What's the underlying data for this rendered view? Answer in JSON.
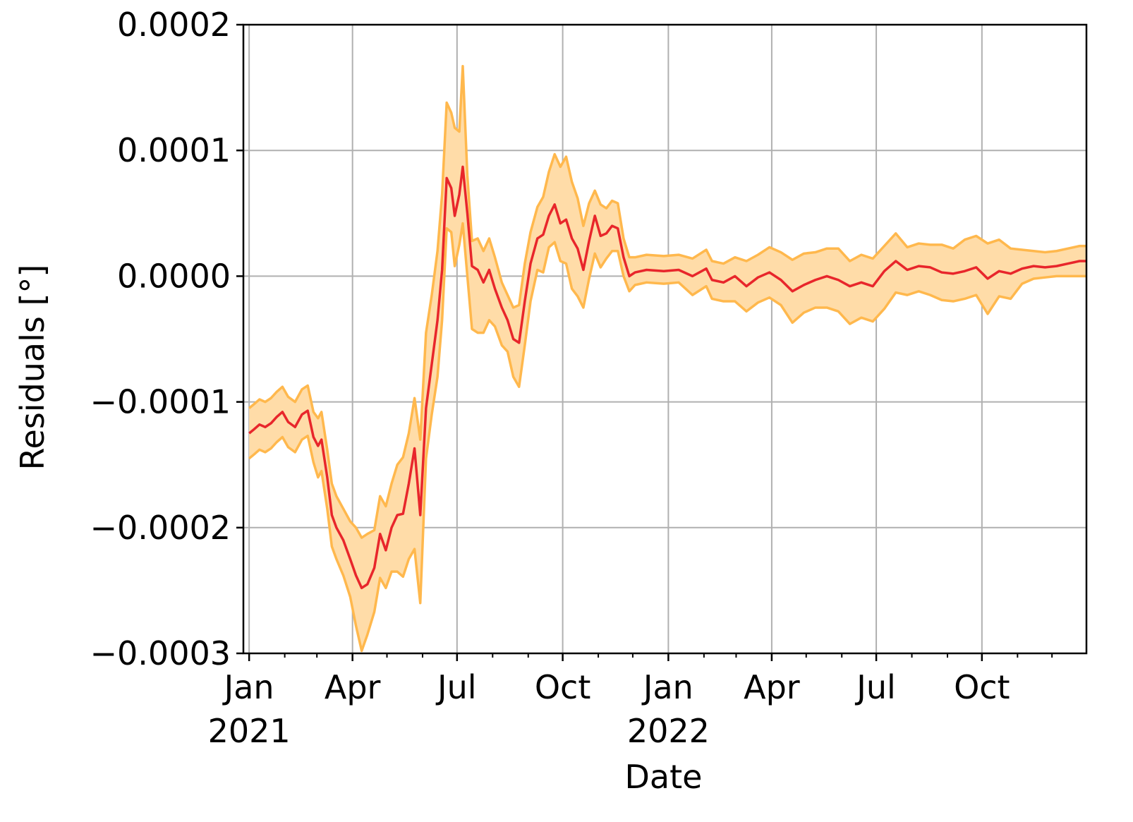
{
  "chart_data": {
    "type": "line",
    "xlabel": "Date",
    "ylabel": "Residuals [°]",
    "xlim": [
      "2020-12-27",
      "2022-12-31"
    ],
    "ylim": [
      -0.0003,
      0.0002
    ],
    "grid": true,
    "colors": {
      "line": "#e8262b",
      "band_edge": "#ffb84d",
      "band_fill": "#ffdca8",
      "grid": "#b0b0b0"
    },
    "y_ticks": [
      {
        "value": 0.0002,
        "label": "0.0002"
      },
      {
        "value": 0.0001,
        "label": "0.0001"
      },
      {
        "value": 0.0,
        "label": "0.0000"
      },
      {
        "value": -0.0001,
        "label": "−0.0001"
      },
      {
        "value": -0.0002,
        "label": "−0.0002"
      },
      {
        "value": -0.0003,
        "label": "−0.0003"
      }
    ],
    "x_ticks": [
      {
        "date": "2021-01-01",
        "label": "Jan",
        "sublabel": "2021"
      },
      {
        "date": "2021-04-01",
        "label": "Apr",
        "sublabel": ""
      },
      {
        "date": "2021-07-01",
        "label": "Jul",
        "sublabel": ""
      },
      {
        "date": "2021-10-01",
        "label": "Oct",
        "sublabel": ""
      },
      {
        "date": "2022-01-01",
        "label": "Jan",
        "sublabel": "2022"
      },
      {
        "date": "2022-04-01",
        "label": "Apr",
        "sublabel": ""
      },
      {
        "date": "2022-07-01",
        "label": "Jul",
        "sublabel": ""
      },
      {
        "date": "2022-10-01",
        "label": "Oct",
        "sublabel": ""
      }
    ],
    "minor_x_ticks": [
      "2021-02-01",
      "2021-03-01",
      "2021-05-01",
      "2021-06-01",
      "2021-08-01",
      "2021-09-01",
      "2021-11-01",
      "2021-12-01",
      "2022-02-01",
      "2022-03-01",
      "2022-05-01",
      "2022-06-01",
      "2022-08-01",
      "2022-09-01",
      "2022-11-01",
      "2022-12-01"
    ],
    "series": [
      {
        "kind": "line",
        "points": [
          [
            "2021-01-01",
            -0.000125
          ],
          [
            "2021-01-05",
            -0.000122
          ],
          [
            "2021-01-10",
            -0.000118
          ],
          [
            "2021-01-15",
            -0.00012
          ],
          [
            "2021-01-20",
            -0.000117
          ],
          [
            "2021-01-25",
            -0.000112
          ],
          [
            "2021-01-30",
            -0.000108
          ],
          [
            "2021-02-04",
            -0.000116
          ],
          [
            "2021-02-10",
            -0.00012
          ],
          [
            "2021-02-16",
            -0.00011
          ],
          [
            "2021-02-21",
            -0.000107
          ],
          [
            "2021-02-26",
            -0.000128
          ],
          [
            "2021-03-02",
            -0.000135
          ],
          [
            "2021-03-05",
            -0.00013
          ],
          [
            "2021-03-10",
            -0.00016
          ],
          [
            "2021-03-14",
            -0.00019
          ],
          [
            "2021-03-18",
            -0.0002
          ],
          [
            "2021-03-24",
            -0.00021
          ],
          [
            "2021-03-30",
            -0.000225
          ],
          [
            "2021-04-04",
            -0.000238
          ],
          [
            "2021-04-09",
            -0.000248
          ],
          [
            "2021-04-14",
            -0.000245
          ],
          [
            "2021-04-20",
            -0.000232
          ],
          [
            "2021-04-25",
            -0.000205
          ],
          [
            "2021-04-30",
            -0.000218
          ],
          [
            "2021-05-05",
            -0.0002
          ],
          [
            "2021-05-10",
            -0.00019
          ],
          [
            "2021-05-15",
            -0.000189
          ],
          [
            "2021-05-20",
            -0.000165
          ],
          [
            "2021-05-25",
            -0.000137
          ],
          [
            "2021-05-30",
            -0.00019
          ],
          [
            "2021-06-04",
            -0.000105
          ],
          [
            "2021-06-09",
            -7e-05
          ],
          [
            "2021-06-14",
            -3.5e-05
          ],
          [
            "2021-06-18",
            5e-06
          ],
          [
            "2021-06-22",
            7.8e-05
          ],
          [
            "2021-06-26",
            7e-05
          ],
          [
            "2021-06-29",
            4.8e-05
          ],
          [
            "2021-07-03",
            6.5e-05
          ],
          [
            "2021-07-06",
            8.7e-05
          ],
          [
            "2021-07-10",
            5e-05
          ],
          [
            "2021-07-14",
            8e-06
          ],
          [
            "2021-07-19",
            5e-06
          ],
          [
            "2021-07-24",
            -5e-06
          ],
          [
            "2021-07-29",
            5e-06
          ],
          [
            "2021-08-03",
            -1e-05
          ],
          [
            "2021-08-09",
            -2.5e-05
          ],
          [
            "2021-08-14",
            -3.5e-05
          ],
          [
            "2021-08-19",
            -5e-05
          ],
          [
            "2021-08-24",
            -5.3e-05
          ],
          [
            "2021-08-29",
            -2e-05
          ],
          [
            "2021-09-03",
            1e-05
          ],
          [
            "2021-09-09",
            3e-05
          ],
          [
            "2021-09-14",
            3.3e-05
          ],
          [
            "2021-09-19",
            4.8e-05
          ],
          [
            "2021-09-24",
            5.7e-05
          ],
          [
            "2021-09-29",
            4.2e-05
          ],
          [
            "2021-10-04",
            4.5e-05
          ],
          [
            "2021-10-09",
            3e-05
          ],
          [
            "2021-10-14",
            2.2e-05
          ],
          [
            "2021-10-19",
            5e-06
          ],
          [
            "2021-10-24",
            2.8e-05
          ],
          [
            "2021-10-29",
            4.8e-05
          ],
          [
            "2021-11-03",
            3.2e-05
          ],
          [
            "2021-11-08",
            3.4e-05
          ],
          [
            "2021-11-13",
            4e-05
          ],
          [
            "2021-11-18",
            3.8e-05
          ],
          [
            "2021-11-23",
            1.5e-05
          ],
          [
            "2021-11-28",
            0.0
          ],
          [
            "2021-12-03",
            3e-06
          ],
          [
            "2021-12-13",
            5e-06
          ],
          [
            "2021-12-28",
            4e-06
          ],
          [
            "2022-01-10",
            5e-06
          ],
          [
            "2022-01-22",
            0.0
          ],
          [
            "2022-02-03",
            6e-06
          ],
          [
            "2022-02-08",
            -3e-06
          ],
          [
            "2022-02-18",
            -5e-06
          ],
          [
            "2022-02-28",
            0.0
          ],
          [
            "2022-03-10",
            -8e-06
          ],
          [
            "2022-03-20",
            -1e-06
          ],
          [
            "2022-03-30",
            3e-06
          ],
          [
            "2022-04-09",
            -3e-06
          ],
          [
            "2022-04-19",
            -1.2e-05
          ],
          [
            "2022-04-29",
            -7e-06
          ],
          [
            "2022-05-09",
            -3e-06
          ],
          [
            "2022-05-19",
            0.0
          ],
          [
            "2022-05-29",
            -3e-06
          ],
          [
            "2022-06-08",
            -8e-06
          ],
          [
            "2022-06-18",
            -5e-06
          ],
          [
            "2022-06-28",
            -8e-06
          ],
          [
            "2022-07-08",
            4e-06
          ],
          [
            "2022-07-18",
            1.2e-05
          ],
          [
            "2022-07-28",
            5e-06
          ],
          [
            "2022-08-07",
            8e-06
          ],
          [
            "2022-08-17",
            7e-06
          ],
          [
            "2022-08-27",
            3e-06
          ],
          [
            "2022-09-06",
            2e-06
          ],
          [
            "2022-09-16",
            4e-06
          ],
          [
            "2022-09-26",
            7e-06
          ],
          [
            "2022-10-06",
            -2e-06
          ],
          [
            "2022-10-16",
            4e-06
          ],
          [
            "2022-10-26",
            2e-06
          ],
          [
            "2022-11-05",
            6e-06
          ],
          [
            "2022-11-15",
            8e-06
          ],
          [
            "2022-11-25",
            7e-06
          ],
          [
            "2022-12-05",
            8e-06
          ],
          [
            "2022-12-15",
            1e-05
          ],
          [
            "2022-12-25",
            1.2e-05
          ],
          [
            "2022-12-31",
            1.2e-05
          ]
        ]
      },
      {
        "kind": "band",
        "lower_offset": [
          -2e-05,
          -2e-05,
          -2e-05,
          -2e-05,
          -2e-05,
          -2e-05,
          -2e-05,
          -2e-05,
          -2e-05,
          -2e-05,
          -2e-05,
          -2e-05,
          -2.5e-05,
          -2.5e-05,
          -2.5e-05,
          -2.5e-05,
          -2.5e-05,
          -2.8e-05,
          -3e-05,
          -4e-05,
          -5e-05,
          -4e-05,
          -3.5e-05,
          -3.5e-05,
          -3e-05,
          -3.5e-05,
          -4.5e-05,
          -5e-05,
          -6e-05,
          -8e-05,
          -7e-05,
          -4e-05,
          -4e-05,
          -4.5e-05,
          -4e-05,
          -4e-05,
          -3.5e-05,
          -4e-05,
          -4e-05,
          -4.5e-05,
          -5e-05,
          -5e-05,
          -5e-05,
          -4e-05,
          -4e-05,
          -3e-05,
          -3e-05,
          -2.5e-05,
          -3e-05,
          -3.5e-05,
          -3.5e-05,
          -3e-05,
          -2.5e-05,
          -3e-05,
          -2.5e-05,
          -3e-05,
          -3e-05,
          -3.5e-05,
          -4e-05,
          -3.8e-05,
          -3e-05,
          -3e-05,
          -3e-05,
          -2.5e-05,
          -2e-05,
          -2e-05,
          -1.8e-05,
          -1.5e-05,
          -1.2e-05,
          -1e-05,
          -1e-05,
          -1e-05,
          -1e-05,
          -1.5e-05,
          -1.4e-05,
          -1.5e-05,
          -1.5e-05,
          -2e-05,
          -2e-05,
          -2e-05,
          -2e-05,
          -2e-05,
          -2.5e-05,
          -2.2e-05,
          -2.2e-05,
          -2.5e-05,
          -2.5e-05,
          -3e-05,
          -2.8e-05,
          -2.8e-05,
          -3e-05,
          -2.5e-05,
          -2e-05,
          -2e-05,
          -2.2e-05,
          -2.2e-05,
          -2.2e-05,
          -2.2e-05,
          -2.2e-05,
          -2.8e-05,
          -2e-05,
          -2e-05,
          -1.2e-05,
          -1e-05,
          -8e-06,
          -8e-06,
          -1e-05,
          -1.2e-05,
          -1.2e-05
        ],
        "upper_offset": [
          2e-05,
          2e-05,
          2e-05,
          2e-05,
          2e-05,
          2e-05,
          2e-05,
          2e-05,
          2e-05,
          2e-05,
          2e-05,
          2e-05,
          2.2e-05,
          2.2e-05,
          2.2e-05,
          2.5e-05,
          2.5e-05,
          2.5e-05,
          3e-05,
          3.8e-05,
          4e-05,
          4e-05,
          3e-05,
          3e-05,
          3.5e-05,
          3.5e-05,
          4e-05,
          4.5e-05,
          4e-05,
          4e-05,
          6e-05,
          6e-05,
          5.5e-05,
          5.5e-05,
          6e-05,
          6e-05,
          6e-05,
          7e-05,
          5e-05,
          8e-05,
          3e-05,
          2e-05,
          2.5e-05,
          2.5e-05,
          2.5e-05,
          2.5e-05,
          2e-05,
          2e-05,
          2.5e-05,
          3e-05,
          3e-05,
          2.5e-05,
          2.5e-05,
          3e-05,
          3.5e-05,
          4e-05,
          4.5e-05,
          5e-05,
          4.5e-05,
          4e-05,
          3.5e-05,
          3e-05,
          2e-05,
          2.5e-05,
          2e-05,
          2e-05,
          2e-05,
          1.5e-05,
          1.5e-05,
          1.2e-05,
          1.2e-05,
          1.2e-05,
          1.2e-05,
          1.4e-05,
          1.5e-05,
          1.5e-05,
          1.5e-05,
          1.5e-05,
          2e-05,
          1.8e-05,
          2e-05,
          2.2e-05,
          2.5e-05,
          2.5e-05,
          2.2e-05,
          2.2e-05,
          2.5e-05,
          2e-05,
          2.2e-05,
          2.2e-05,
          2e-05,
          2.2e-05,
          1.8e-05,
          1.8e-05,
          1.8e-05,
          2.2e-05,
          2e-05,
          2.5e-05,
          2.5e-05,
          2.8e-05,
          2.5e-05,
          2e-05,
          1.5e-05,
          1.2e-05,
          1.2e-05,
          1.2e-05,
          1.2e-05,
          1.2e-05,
          1.2e-05
        ]
      }
    ]
  }
}
